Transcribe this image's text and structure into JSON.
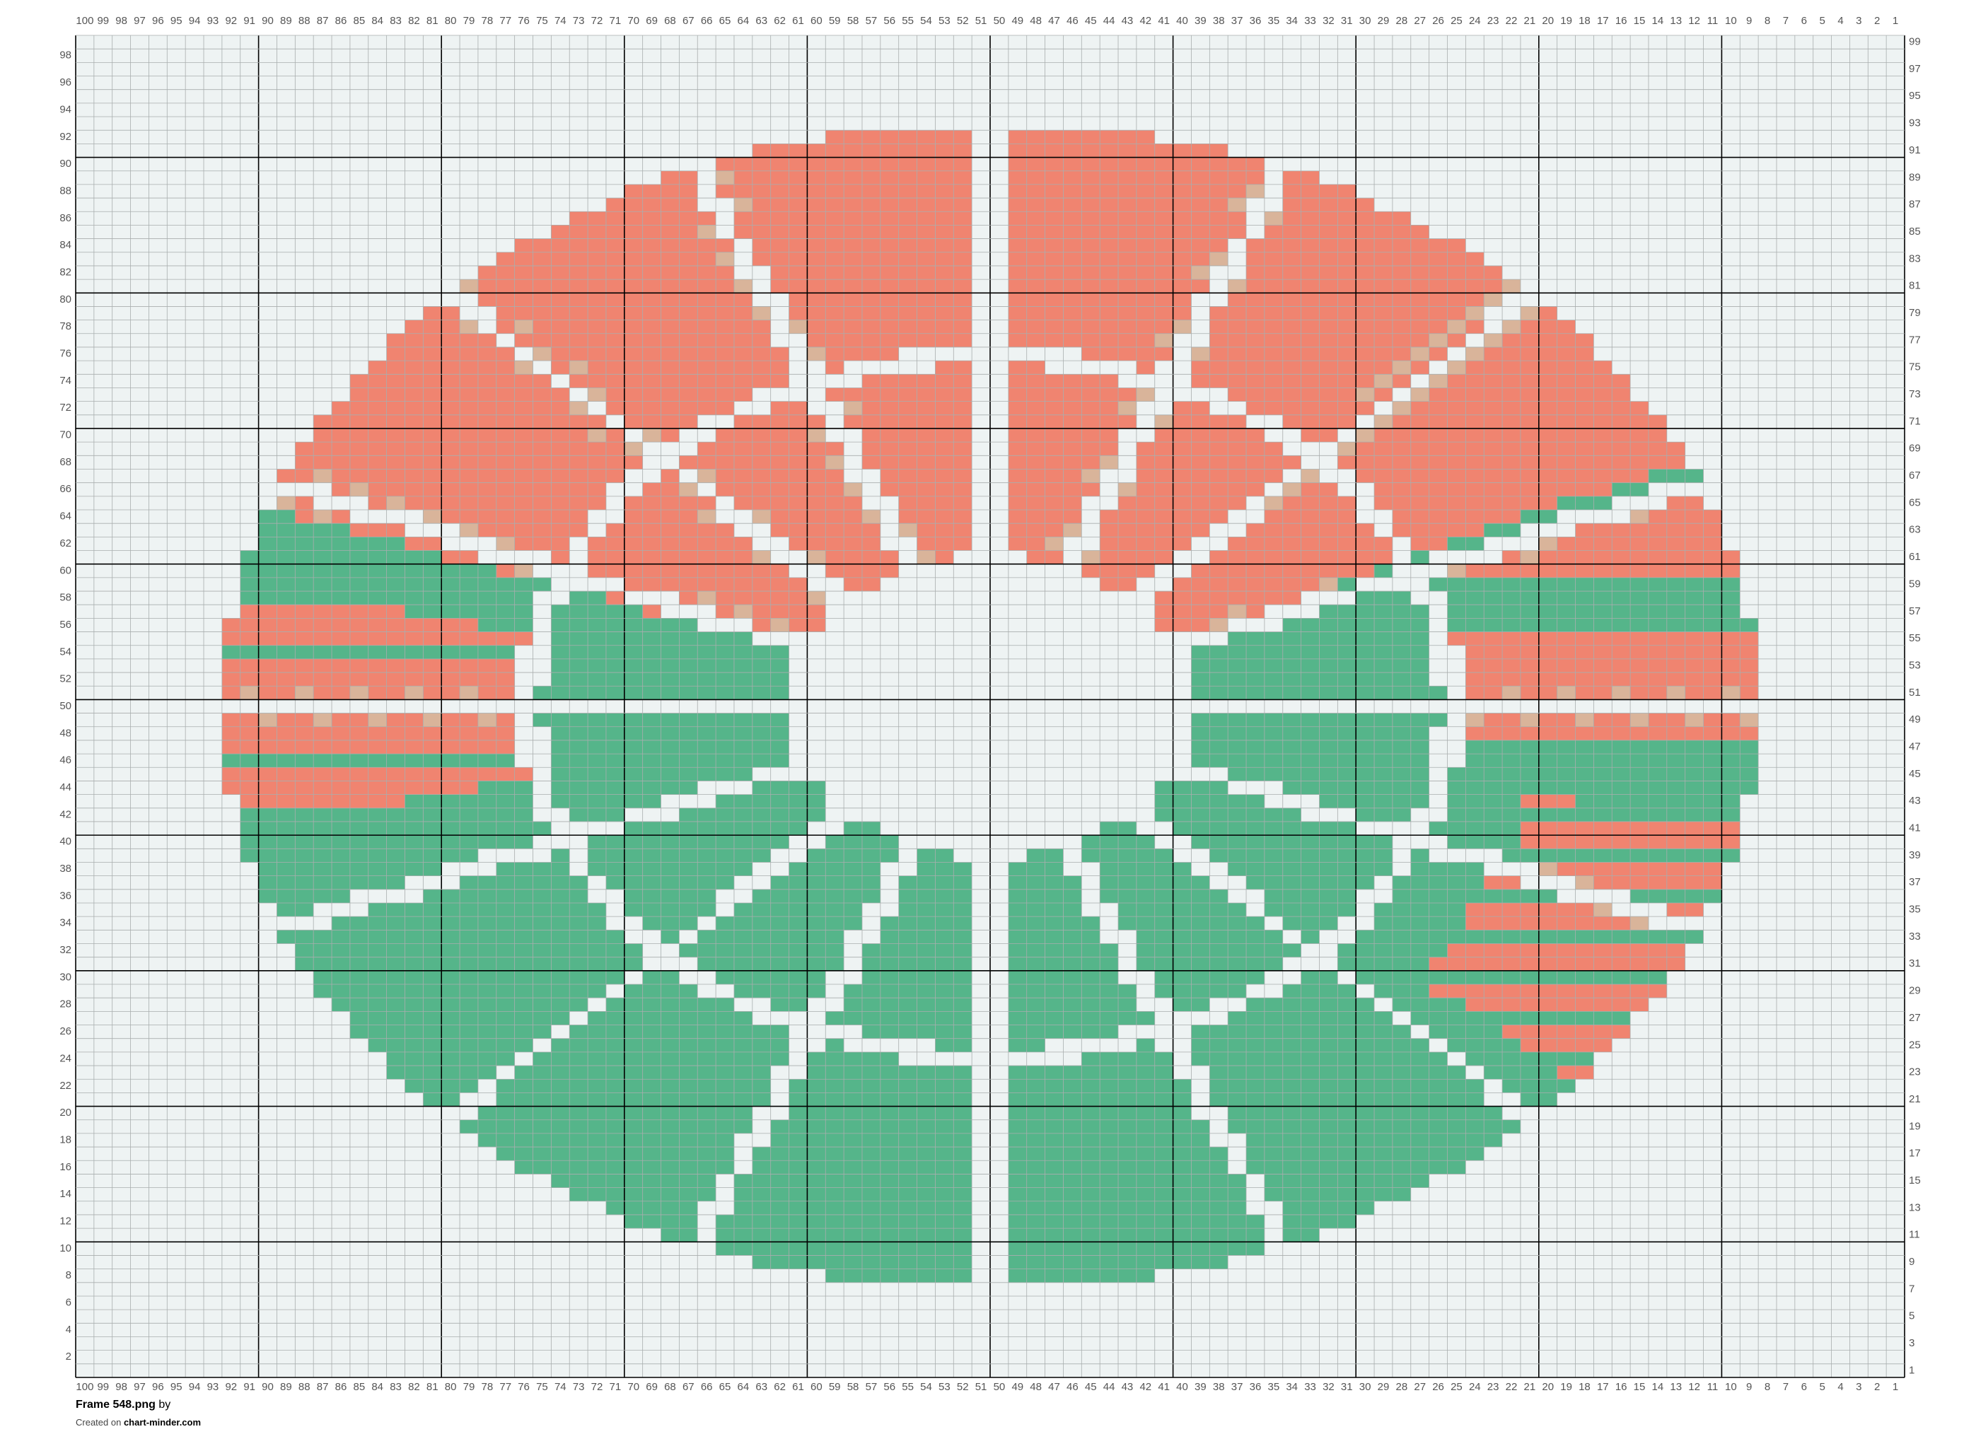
{
  "header": {
    "title": "Frame 548.png",
    "by": "by"
  },
  "footer": {
    "created_on": "Created on",
    "site": "chart-minder.com"
  },
  "grid": {
    "columns": [
      100,
      99,
      98,
      97,
      96,
      95,
      94,
      93,
      92,
      91,
      90,
      89,
      88,
      87,
      86,
      85,
      84,
      83,
      82,
      81,
      80,
      79,
      78,
      77,
      76,
      75,
      74,
      73,
      72,
      71,
      70,
      69,
      68,
      67,
      66,
      65,
      64,
      63,
      62,
      61,
      60,
      59,
      58,
      57,
      56,
      55,
      54,
      53,
      52,
      51,
      50,
      49,
      48,
      47,
      46,
      45,
      44,
      43,
      42,
      41,
      40,
      39,
      38,
      37,
      36,
      35,
      34,
      33,
      32,
      31,
      30,
      29,
      28,
      27,
      26,
      25,
      24,
      23,
      22,
      21,
      20,
      19,
      18,
      17,
      16,
      15,
      14,
      13,
      12,
      11,
      10,
      9,
      8,
      7,
      6,
      5,
      4,
      3,
      2,
      1
    ],
    "rows": [
      99,
      98,
      97,
      96,
      95,
      94,
      93,
      92,
      91,
      90,
      89,
      88,
      87,
      86,
      85,
      84,
      83,
      82,
      81,
      80,
      79,
      78,
      77,
      76,
      75,
      74,
      73,
      72,
      71,
      70,
      69,
      68,
      67,
      66,
      65,
      64,
      63,
      62,
      61,
      60,
      59,
      58,
      57,
      56,
      55,
      54,
      53,
      52,
      51,
      50,
      49,
      48,
      47,
      46,
      45,
      44,
      43,
      42,
      41,
      40,
      39,
      38,
      37,
      36,
      35,
      34,
      33,
      32,
      31,
      30,
      29,
      28,
      27,
      26,
      25,
      24,
      23,
      22,
      21,
      20,
      19,
      18,
      17,
      16,
      15,
      14,
      13,
      12,
      11,
      10,
      9,
      8,
      7,
      6,
      5,
      4,
      3,
      2,
      1
    ]
  }
}
